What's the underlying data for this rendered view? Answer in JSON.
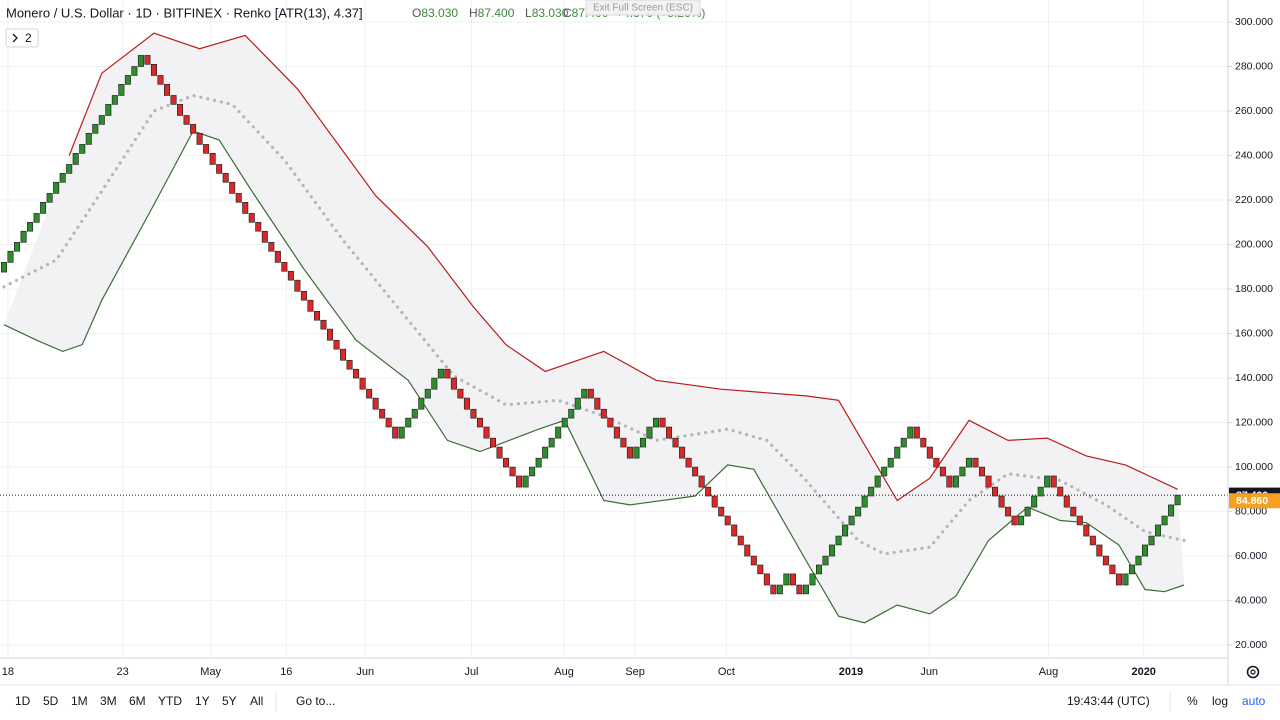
{
  "header": {
    "title": "Monero / U.S. Dollar · 1D · BITFINEX · Renko [ATR(13), 4.37]",
    "ohlc": [
      {
        "key": "O",
        "value": "83.030"
      },
      {
        "key": "H",
        "value": "87.400"
      },
      {
        "key": "L",
        "value": "83.030"
      },
      {
        "key": "C",
        "value": "87.400"
      }
    ],
    "change": "+4.370 (+5.26%)",
    "legend_toggle": "2",
    "exit_fullscreen": "Exit Full Screen (ESC)"
  },
  "chart_data": {
    "type": "renko",
    "brick_size": 4.37,
    "up_color": "#2e8b2e",
    "down_color": "#d42a2a",
    "bricks": [
      192,
      197,
      201,
      206,
      210,
      214,
      219,
      223,
      228,
      232,
      236,
      241,
      245,
      250,
      254,
      258,
      263,
      267,
      272,
      276,
      280,
      285,
      281,
      276,
      272,
      267,
      263,
      258,
      254,
      250,
      245,
      241,
      236,
      232,
      228,
      223,
      219,
      214,
      210,
      206,
      201,
      197,
      192,
      188,
      184,
      179,
      175,
      170,
      166,
      162,
      157,
      153,
      148,
      144,
      140,
      135,
      131,
      126,
      122,
      118,
      113,
      118,
      122,
      126,
      131,
      135,
      140,
      144,
      140,
      135,
      131,
      126,
      122,
      118,
      113,
      109,
      104,
      100,
      96,
      91,
      96,
      100,
      104,
      109,
      113,
      118,
      122,
      126,
      131,
      135,
      131,
      126,
      122,
      118,
      113,
      109,
      104,
      109,
      113,
      118,
      122,
      118,
      113,
      109,
      104,
      100,
      96,
      91,
      87,
      82,
      78,
      74,
      69,
      65,
      60,
      56,
      52,
      47,
      43,
      47,
      52,
      47,
      43,
      47,
      52,
      56,
      60,
      65,
      69,
      74,
      78,
      82,
      87,
      91,
      96,
      100,
      104,
      109,
      113,
      118,
      113,
      109,
      104,
      100,
      96,
      91,
      96,
      100,
      104,
      100,
      96,
      91,
      87,
      82,
      78,
      74,
      78,
      82,
      87,
      91,
      96,
      91,
      87,
      82,
      78,
      74,
      69,
      65,
      60,
      56,
      52,
      47,
      52,
      56,
      60,
      65,
      69,
      74,
      78,
      83,
      87.4
    ],
    "bands": [
      {
        "color": "#b71c1c",
        "style": "solid",
        "x": [
          10,
          15,
          23,
          30,
          37,
          45,
          57,
          65,
          72,
          77,
          83,
          92,
          100,
          110,
          123,
          128,
          132,
          137,
          142,
          148,
          154,
          160,
          166,
          172,
          180
        ],
        "values": [
          240,
          277,
          295,
          288,
          294,
          270,
          222,
          199,
          172,
          155,
          143,
          152,
          139,
          135,
          132,
          130,
          110,
          85,
          95,
          121,
          112,
          113,
          105,
          101,
          90
        ]
      },
      {
        "color": "#3d6b35",
        "style": "solid",
        "x": [
          0,
          5,
          9,
          12,
          15,
          23,
          29,
          33,
          38,
          46,
          54,
          62,
          68,
          73,
          82,
          86,
          92,
          96,
          106,
          111,
          115,
          123,
          128,
          132,
          137,
          142,
          146,
          151,
          157,
          162,
          166,
          171,
          175,
          178,
          181
        ],
        "values": [
          164,
          157,
          152,
          155,
          175,
          218,
          251,
          247,
          224,
          189,
          157,
          139,
          112,
          107,
          117,
          121,
          85,
          83,
          87,
          101,
          99,
          58,
          33,
          30,
          38,
          34,
          42,
          67,
          82,
          76,
          75,
          65,
          45,
          44,
          47
        ]
      },
      {
        "color": "#b5b5b5",
        "style": "dots",
        "x": [
          0,
          8,
          15,
          23,
          29,
          35,
          43,
          52,
          62,
          69,
          77,
          85,
          92,
          100,
          111,
          117,
          123,
          131,
          135,
          142,
          148,
          154,
          162,
          169,
          175,
          181
        ],
        "values": [
          181,
          193,
          224,
          260,
          267,
          263,
          238,
          202,
          166,
          141,
          128,
          130,
          123,
          112,
          117,
          112,
          94,
          67,
          61,
          64,
          85,
          97,
          94,
          83,
          71,
          67
        ]
      }
    ],
    "ylim": [
      14.2,
      309.9
    ],
    "yticks": [
      {
        "value": 20,
        "label": "20.000"
      },
      {
        "value": 40,
        "label": "40.000"
      },
      {
        "value": 60,
        "label": "60.000"
      },
      {
        "value": 80,
        "label": "80.000"
      },
      {
        "value": 100,
        "label": "100.000"
      },
      {
        "value": 120,
        "label": "120.000"
      },
      {
        "value": 140,
        "label": "140.000"
      },
      {
        "value": 160,
        "label": "160.000"
      },
      {
        "value": 180,
        "label": "180.000"
      },
      {
        "value": 200,
        "label": "200.000"
      },
      {
        "value": 220,
        "label": "220.000"
      },
      {
        "value": 240,
        "label": "240.000"
      },
      {
        "value": 260,
        "label": "260.000"
      },
      {
        "value": 280,
        "label": "280.000"
      },
      {
        "value": 300,
        "label": "300.000"
      }
    ],
    "xticks": [
      {
        "value": 0.6,
        "label": "18"
      },
      {
        "value": 18.2,
        "label": "23"
      },
      {
        "value": 31.7,
        "label": "May"
      },
      {
        "value": 43.3,
        "label": "16"
      },
      {
        "value": 55.4,
        "label": "Jun"
      },
      {
        "value": 71.7,
        "label": "Jul"
      },
      {
        "value": 85.9,
        "label": "Aug"
      },
      {
        "value": 96.8,
        "label": "Sep"
      },
      {
        "value": 110.8,
        "label": "Oct"
      },
      {
        "value": 129.9,
        "label": "2019",
        "bold": true
      },
      {
        "value": 141.9,
        "label": "Jun"
      },
      {
        "value": 160.2,
        "label": "Aug"
      },
      {
        "value": 174.8,
        "label": "2020",
        "bold": true
      }
    ],
    "grid": true,
    "last_price": {
      "value": 87.4,
      "label": "87.400",
      "color": "#131722"
    },
    "ma_price": {
      "value": 84.86,
      "label": "84.860",
      "color": "#f5a020"
    }
  },
  "toolbar": {
    "timeframes": [
      "1D",
      "5D",
      "1M",
      "3M",
      "6M",
      "YTD",
      "1Y",
      "5Y",
      "All"
    ],
    "goto": "Go to...",
    "clock": "19:43:44 (UTC)",
    "scale_buttons": [
      "%",
      "log",
      "auto"
    ]
  }
}
